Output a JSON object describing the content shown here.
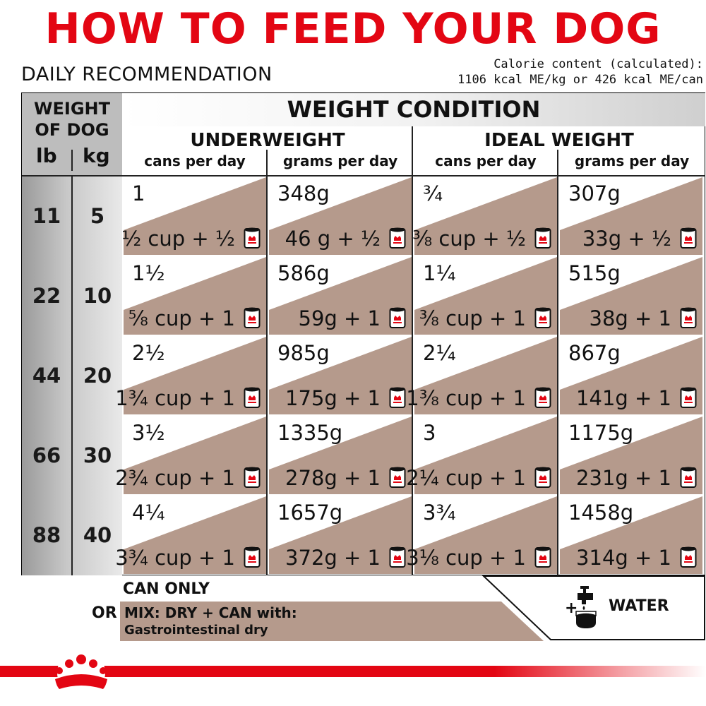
{
  "header": {
    "title": "HOW TO FEED YOUR DOG",
    "subtitle": "DAILY RECOMMENDATION",
    "calorie_line1": "Calorie content (calculated):",
    "calorie_line2": "1106 kcal ME/kg or 426 kcal ME/can"
  },
  "colors": {
    "brand_red": "#e30613",
    "cell_fill": "#b59a8c",
    "text": "#111111"
  },
  "table": {
    "weight_header_line1": "WEIGHT",
    "weight_header_line2": "OF DOG",
    "unit_lb": "lb",
    "unit_kg": "kg",
    "condition_title": "WEIGHT CONDITION",
    "groups": [
      "UNDERWEIGHT",
      "IDEAL WEIGHT"
    ],
    "subheaders": [
      "cans per day",
      "grams per day",
      "cans per day",
      "grams per day"
    ],
    "rows": [
      {
        "lb": "11",
        "kg": "5",
        "cells": [
          {
            "top": "1",
            "bottom": "½ cup + ½"
          },
          {
            "top": "348g",
            "bottom": "46 g + ½"
          },
          {
            "top": "¾",
            "bottom": "⅜ cup + ½"
          },
          {
            "top": "307g",
            "bottom": "33g + ½"
          }
        ]
      },
      {
        "lb": "22",
        "kg": "10",
        "cells": [
          {
            "top": "1½",
            "bottom": "⅝ cup + 1"
          },
          {
            "top": "586g",
            "bottom": "59g + 1"
          },
          {
            "top": "1¼",
            "bottom": "⅜ cup + 1"
          },
          {
            "top": "515g",
            "bottom": "38g + 1"
          }
        ]
      },
      {
        "lb": "44",
        "kg": "20",
        "cells": [
          {
            "top": "2½",
            "bottom": "1¾ cup + 1"
          },
          {
            "top": "985g",
            "bottom": "175g + 1"
          },
          {
            "top": "2¼",
            "bottom": "1⅜ cup + 1"
          },
          {
            "top": "867g",
            "bottom": "141g + 1"
          }
        ]
      },
      {
        "lb": "66",
        "kg": "30",
        "cells": [
          {
            "top": "3½",
            "bottom": "2¾ cup + 1"
          },
          {
            "top": "1335g",
            "bottom": "278g + 1"
          },
          {
            "top": "3",
            "bottom": "2¼ cup + 1"
          },
          {
            "top": "1175g",
            "bottom": "231g + 1"
          }
        ]
      },
      {
        "lb": "88",
        "kg": "40",
        "cells": [
          {
            "top": "4¼",
            "bottom": "3¾ cup + 1"
          },
          {
            "top": "1657g",
            "bottom": "372g + 1"
          },
          {
            "top": "3¾",
            "bottom": "3⅛ cup + 1"
          },
          {
            "top": "1458g",
            "bottom": "314g + 1"
          }
        ]
      }
    ]
  },
  "footer": {
    "can_only": "CAN ONLY",
    "or": "OR",
    "mix_line1": "MIX: DRY + CAN with:",
    "mix_line2": "Gastrointestinal dry",
    "plus": "+",
    "water": "WATER"
  },
  "icons": [
    "can-icon",
    "water-tap-icon",
    "crown-logo-icon"
  ]
}
